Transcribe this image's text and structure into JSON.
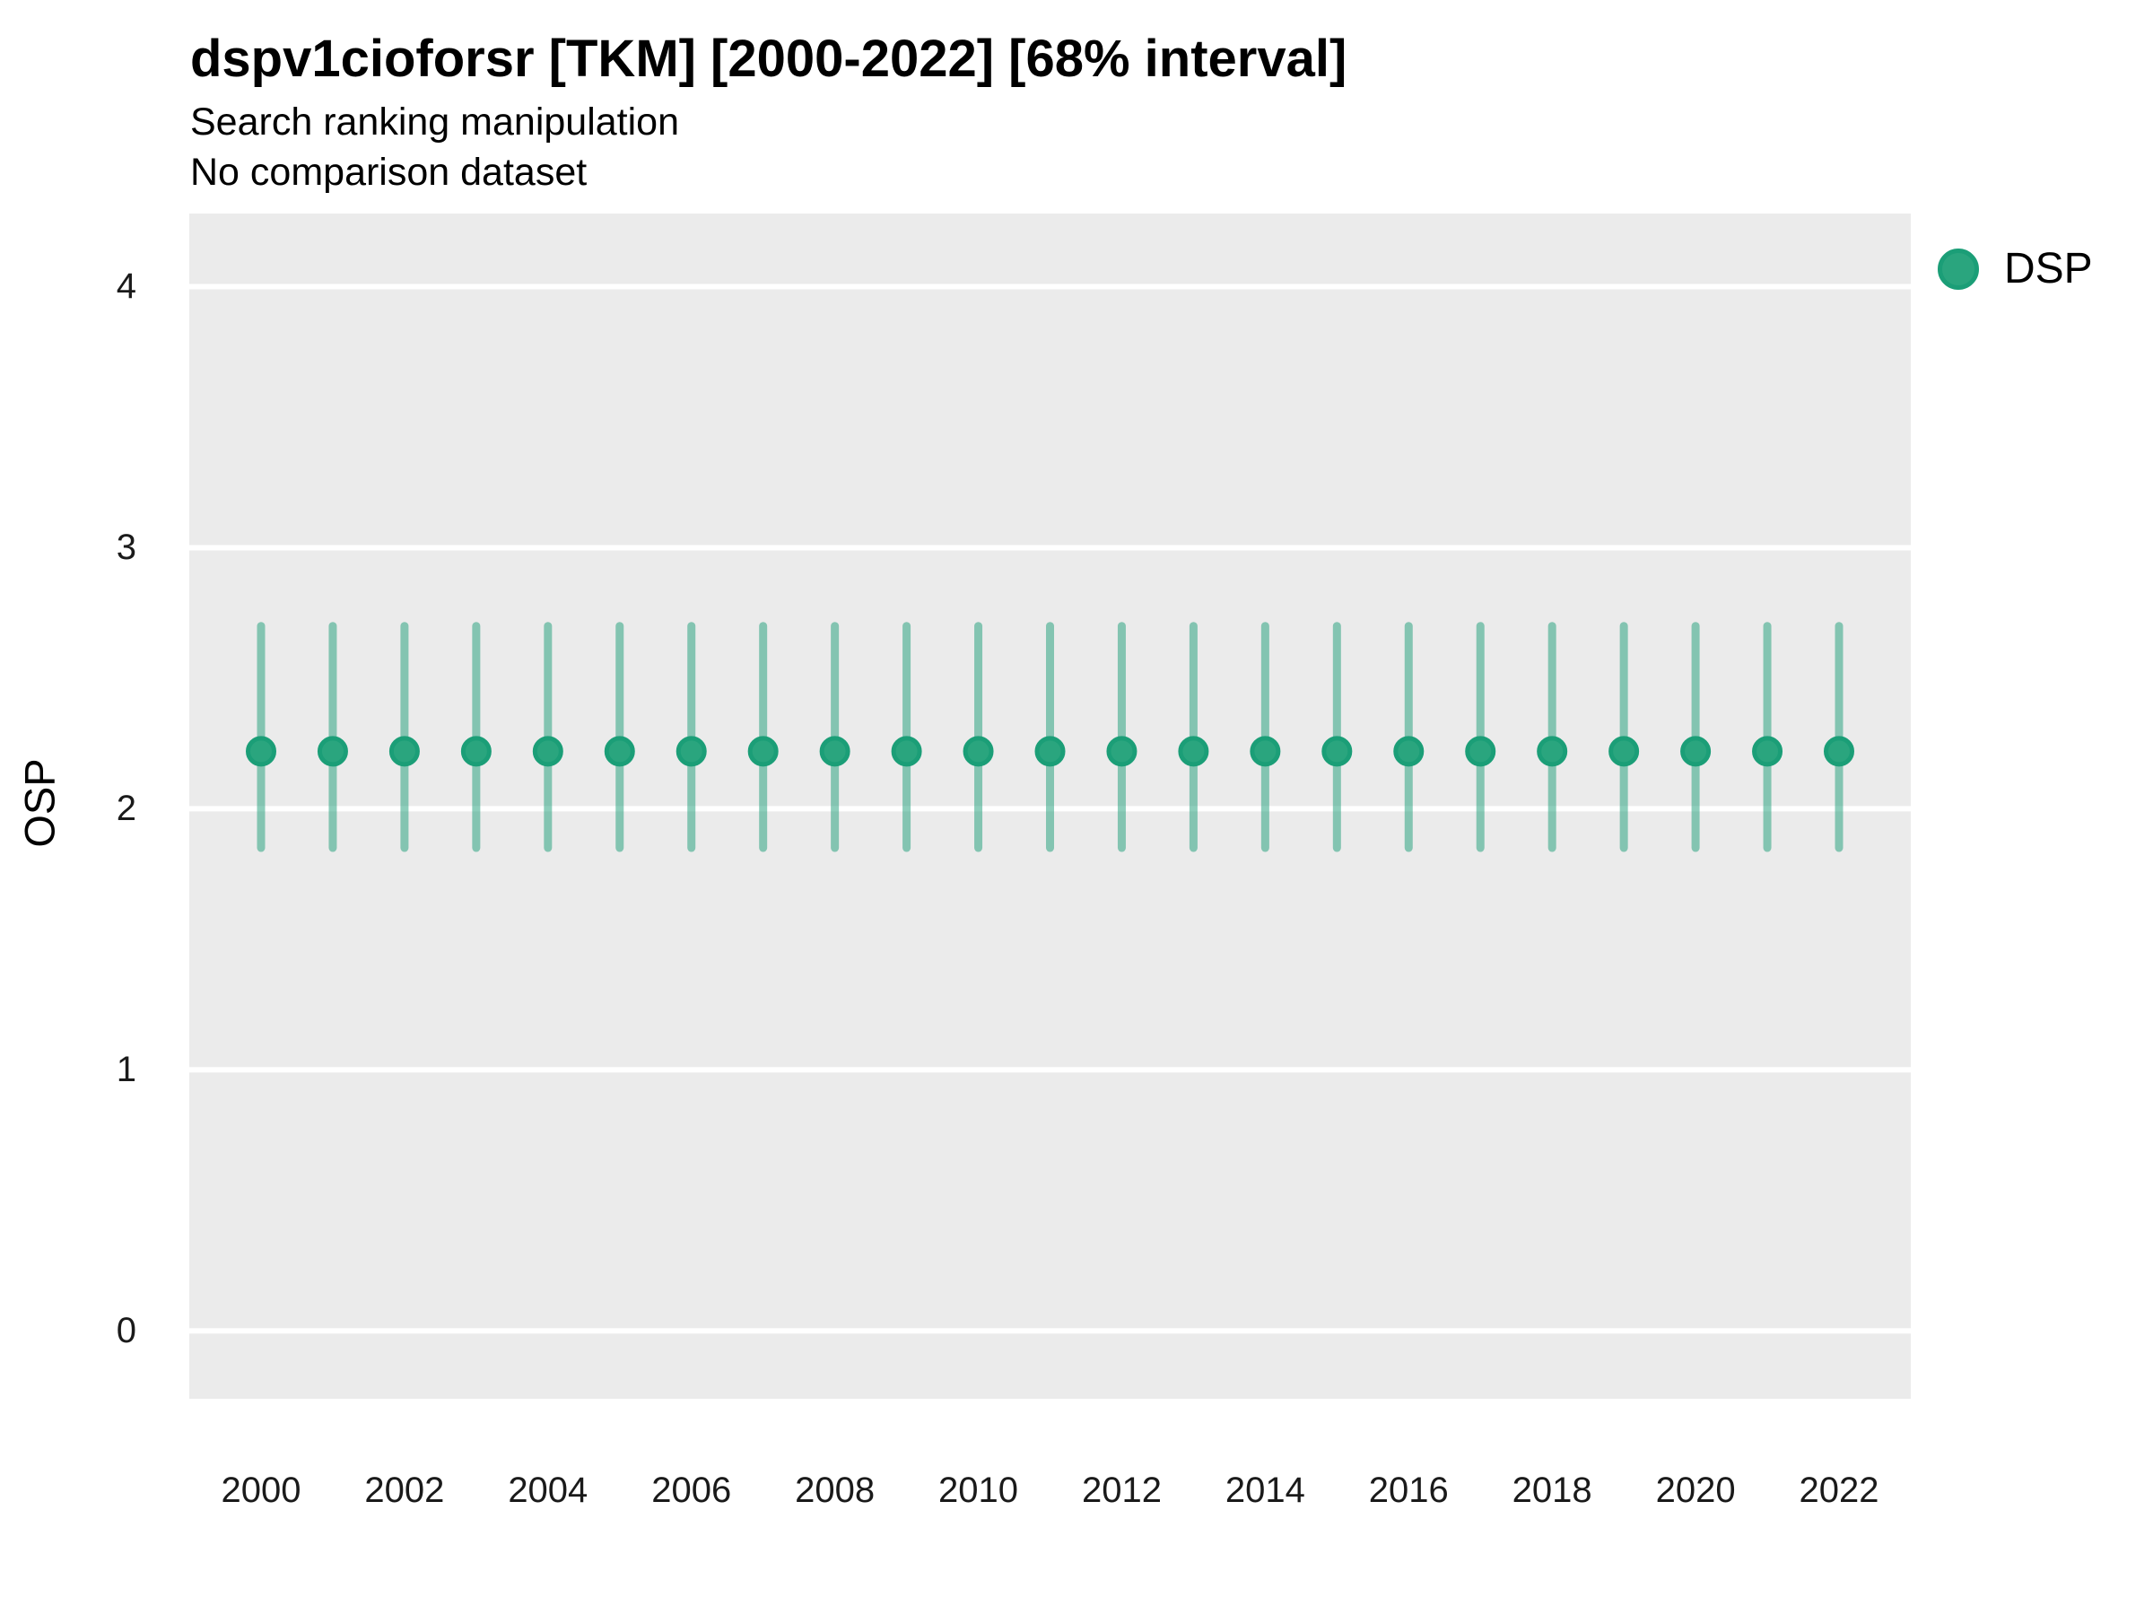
{
  "header": {
    "title": "dspv1cioforsr [TKM] [2000-2022] [68% interval]",
    "subtitle": "Search ranking manipulation",
    "subtitle2": "No comparison dataset"
  },
  "legend": {
    "position": "right",
    "items": [
      {
        "label": "DSP",
        "marker": "circle",
        "color": "#2aa57e"
      }
    ]
  },
  "chart_data": {
    "type": "scatter",
    "mark": "point-with-interval",
    "interval_level": "68%",
    "title": "dspv1cioforsr [TKM] [2000-2022] [68% interval]",
    "subtitle": "Search ranking manipulation",
    "subtitle2": "No comparison dataset",
    "xlabel": "",
    "ylabel": "OSP",
    "ylim": [
      -0.26,
      4.28
    ],
    "y_ticks": [
      0,
      1,
      2,
      3,
      4
    ],
    "x_tick_labels": [
      "2000",
      "2002",
      "2004",
      "2006",
      "2008",
      "2010",
      "2012",
      "2014",
      "2016",
      "2018",
      "2020",
      "2022"
    ],
    "x": [
      2000,
      2001,
      2002,
      2003,
      2004,
      2005,
      2006,
      2007,
      2008,
      2009,
      2010,
      2011,
      2012,
      2013,
      2014,
      2015,
      2016,
      2017,
      2018,
      2019,
      2020,
      2021,
      2022
    ],
    "series": [
      {
        "name": "DSP",
        "color": "#2aa57e",
        "ring_color": "#1b9e77",
        "interval_color": "rgba(27,158,119,0.5)",
        "mean": [
          2.22,
          2.22,
          2.22,
          2.22,
          2.22,
          2.22,
          2.22,
          2.22,
          2.22,
          2.22,
          2.22,
          2.22,
          2.22,
          2.22,
          2.22,
          2.22,
          2.22,
          2.22,
          2.22,
          2.22,
          2.22,
          2.22,
          2.22
        ],
        "lower": [
          1.85,
          1.85,
          1.85,
          1.85,
          1.85,
          1.85,
          1.85,
          1.85,
          1.85,
          1.85,
          1.85,
          1.85,
          1.85,
          1.85,
          1.85,
          1.85,
          1.85,
          1.85,
          1.85,
          1.85,
          1.85,
          1.85,
          1.85
        ],
        "upper": [
          2.7,
          2.7,
          2.7,
          2.7,
          2.7,
          2.7,
          2.7,
          2.7,
          2.7,
          2.7,
          2.7,
          2.7,
          2.7,
          2.7,
          2.7,
          2.7,
          2.7,
          2.7,
          2.7,
          2.7,
          2.7,
          2.7,
          2.7
        ]
      }
    ],
    "grid": "major-horizontal-white",
    "panel_bg": "#ebebeb",
    "legend_position": "right"
  }
}
